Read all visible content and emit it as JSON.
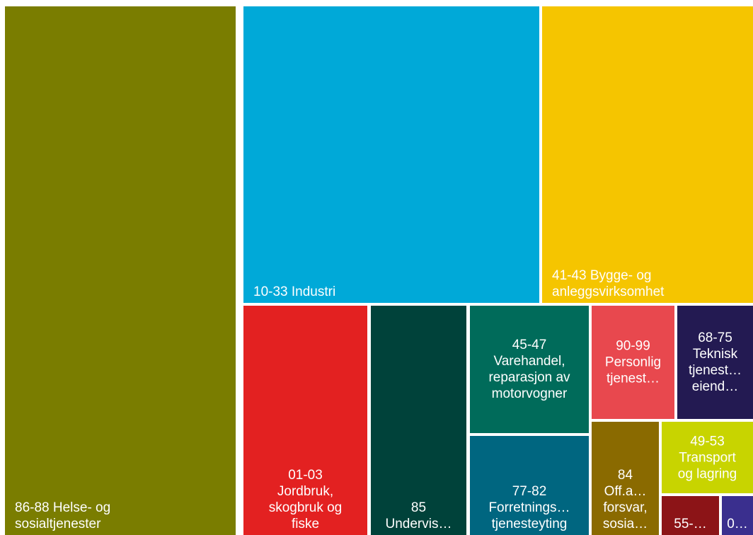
{
  "chart_data": {
    "type": "treemap",
    "tiles": [
      {
        "label": "86-88 Helse- og\nsosialtjenester",
        "color": "#7a7d00",
        "align": "bl"
      },
      {
        "label": "10-33 Industri",
        "color": "#00a9d8",
        "align": "bl"
      },
      {
        "label": "41-43 Bygge- og\nanleggsvirksomhet",
        "color": "#f5c500",
        "align": "bl"
      },
      {
        "label": "01-03\nJordbruk,\nskogbruk og\nfiske",
        "color": "#e32121",
        "align": "bc"
      },
      {
        "label": "85\nUndervis…",
        "color": "#00423a",
        "align": "bc"
      },
      {
        "label": "45-47\nVarehandel,\nreparasjon av\nmotorvogner",
        "color": "#006b5a",
        "align": "c"
      },
      {
        "label": "77-82\nForretnings…\ntjenesteyting",
        "color": "#006680",
        "align": "bc"
      },
      {
        "label": "90-99\nPersonlig\ntjenest…",
        "color": "#e8484e",
        "align": "c"
      },
      {
        "label": "68-75\nTeknisk\ntjenest…\neiend…",
        "color": "#231a52",
        "align": "c"
      },
      {
        "label": "84\nOff.a…\nforsvar,\nsosia…",
        "color": "#8a6a00",
        "align": "bc"
      },
      {
        "label": "49-53\nTransport\nog lagring",
        "color": "#c8d400",
        "align": "c"
      },
      {
        "label": "55-…",
        "color": "#8c1417",
        "align": "bc"
      },
      {
        "label": "0…",
        "color": "#3a2f8e",
        "align": "bc"
      }
    ]
  }
}
